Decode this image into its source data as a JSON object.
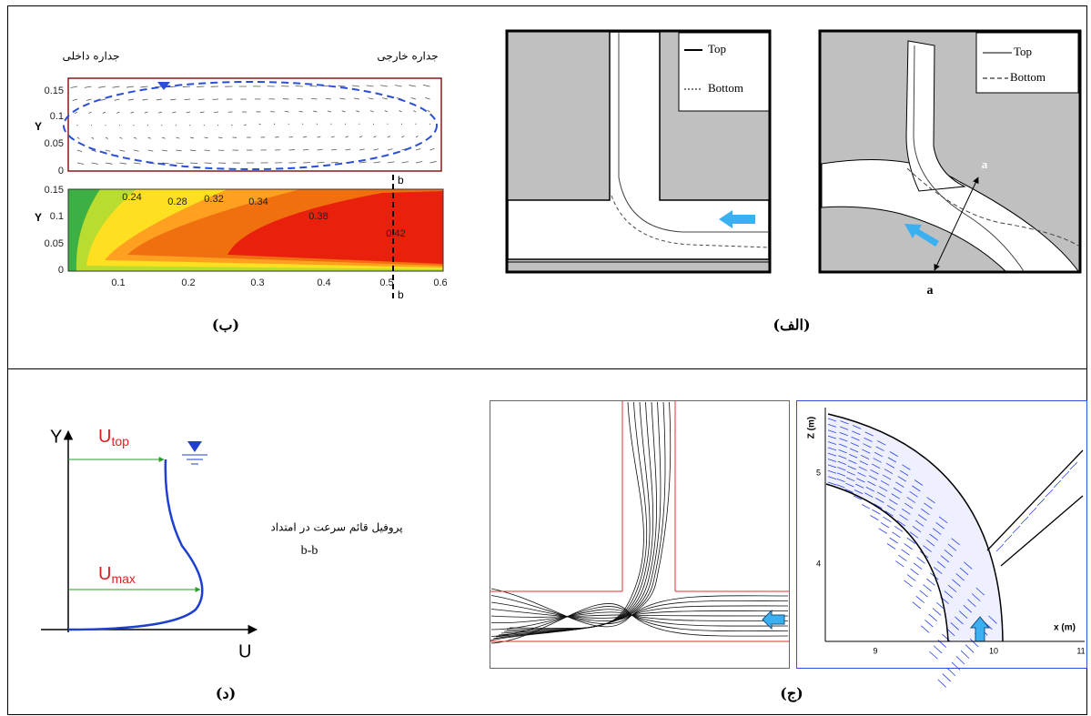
{
  "panel_b": {
    "caption": "(ب)",
    "inner_wall_label": "جداره داخلی",
    "outer_wall_label": "جداره خارجی",
    "vector_plot": {
      "y_label": "Y",
      "y_ticks": [
        "0.15",
        "0.1",
        "0.05",
        "0"
      ]
    },
    "contour_plot": {
      "y_label": "Y",
      "y_ticks": [
        "0.15",
        "0.1",
        "0.05",
        "0"
      ],
      "x_ticks": [
        "0.1",
        "0.2",
        "0.3",
        "0.4",
        "0.5",
        "0.6"
      ],
      "contour_labels": [
        "0.24",
        "0.28",
        "0.32",
        "0.34",
        "0.38",
        "0.42"
      ],
      "section_top": "b",
      "section_bottom": "b"
    }
  },
  "panel_alef": {
    "caption": "(الف)",
    "left_legend": [
      "Top",
      "Bottom"
    ],
    "right_legend": [
      "Top",
      "Bottom"
    ],
    "section_end_top": "a",
    "section_end_bottom": "a"
  },
  "panel_j": {
    "caption": "(ج)",
    "z_label": "Z (m)",
    "z_ticks": [
      "5",
      "4"
    ],
    "x_label": "x (m)",
    "x_ticks": [
      "9",
      "10",
      "11"
    ]
  },
  "panel_d": {
    "caption": "(د)",
    "y_axis": "Y",
    "x_axis": "U",
    "u_top": {
      "symbol": "U",
      "subscript": "top"
    },
    "u_max": {
      "symbol": "U",
      "subscript": "max"
    },
    "description_line1": "پروفیل قائم سرعت در امتداد",
    "description_line2": "b-b"
  }
}
